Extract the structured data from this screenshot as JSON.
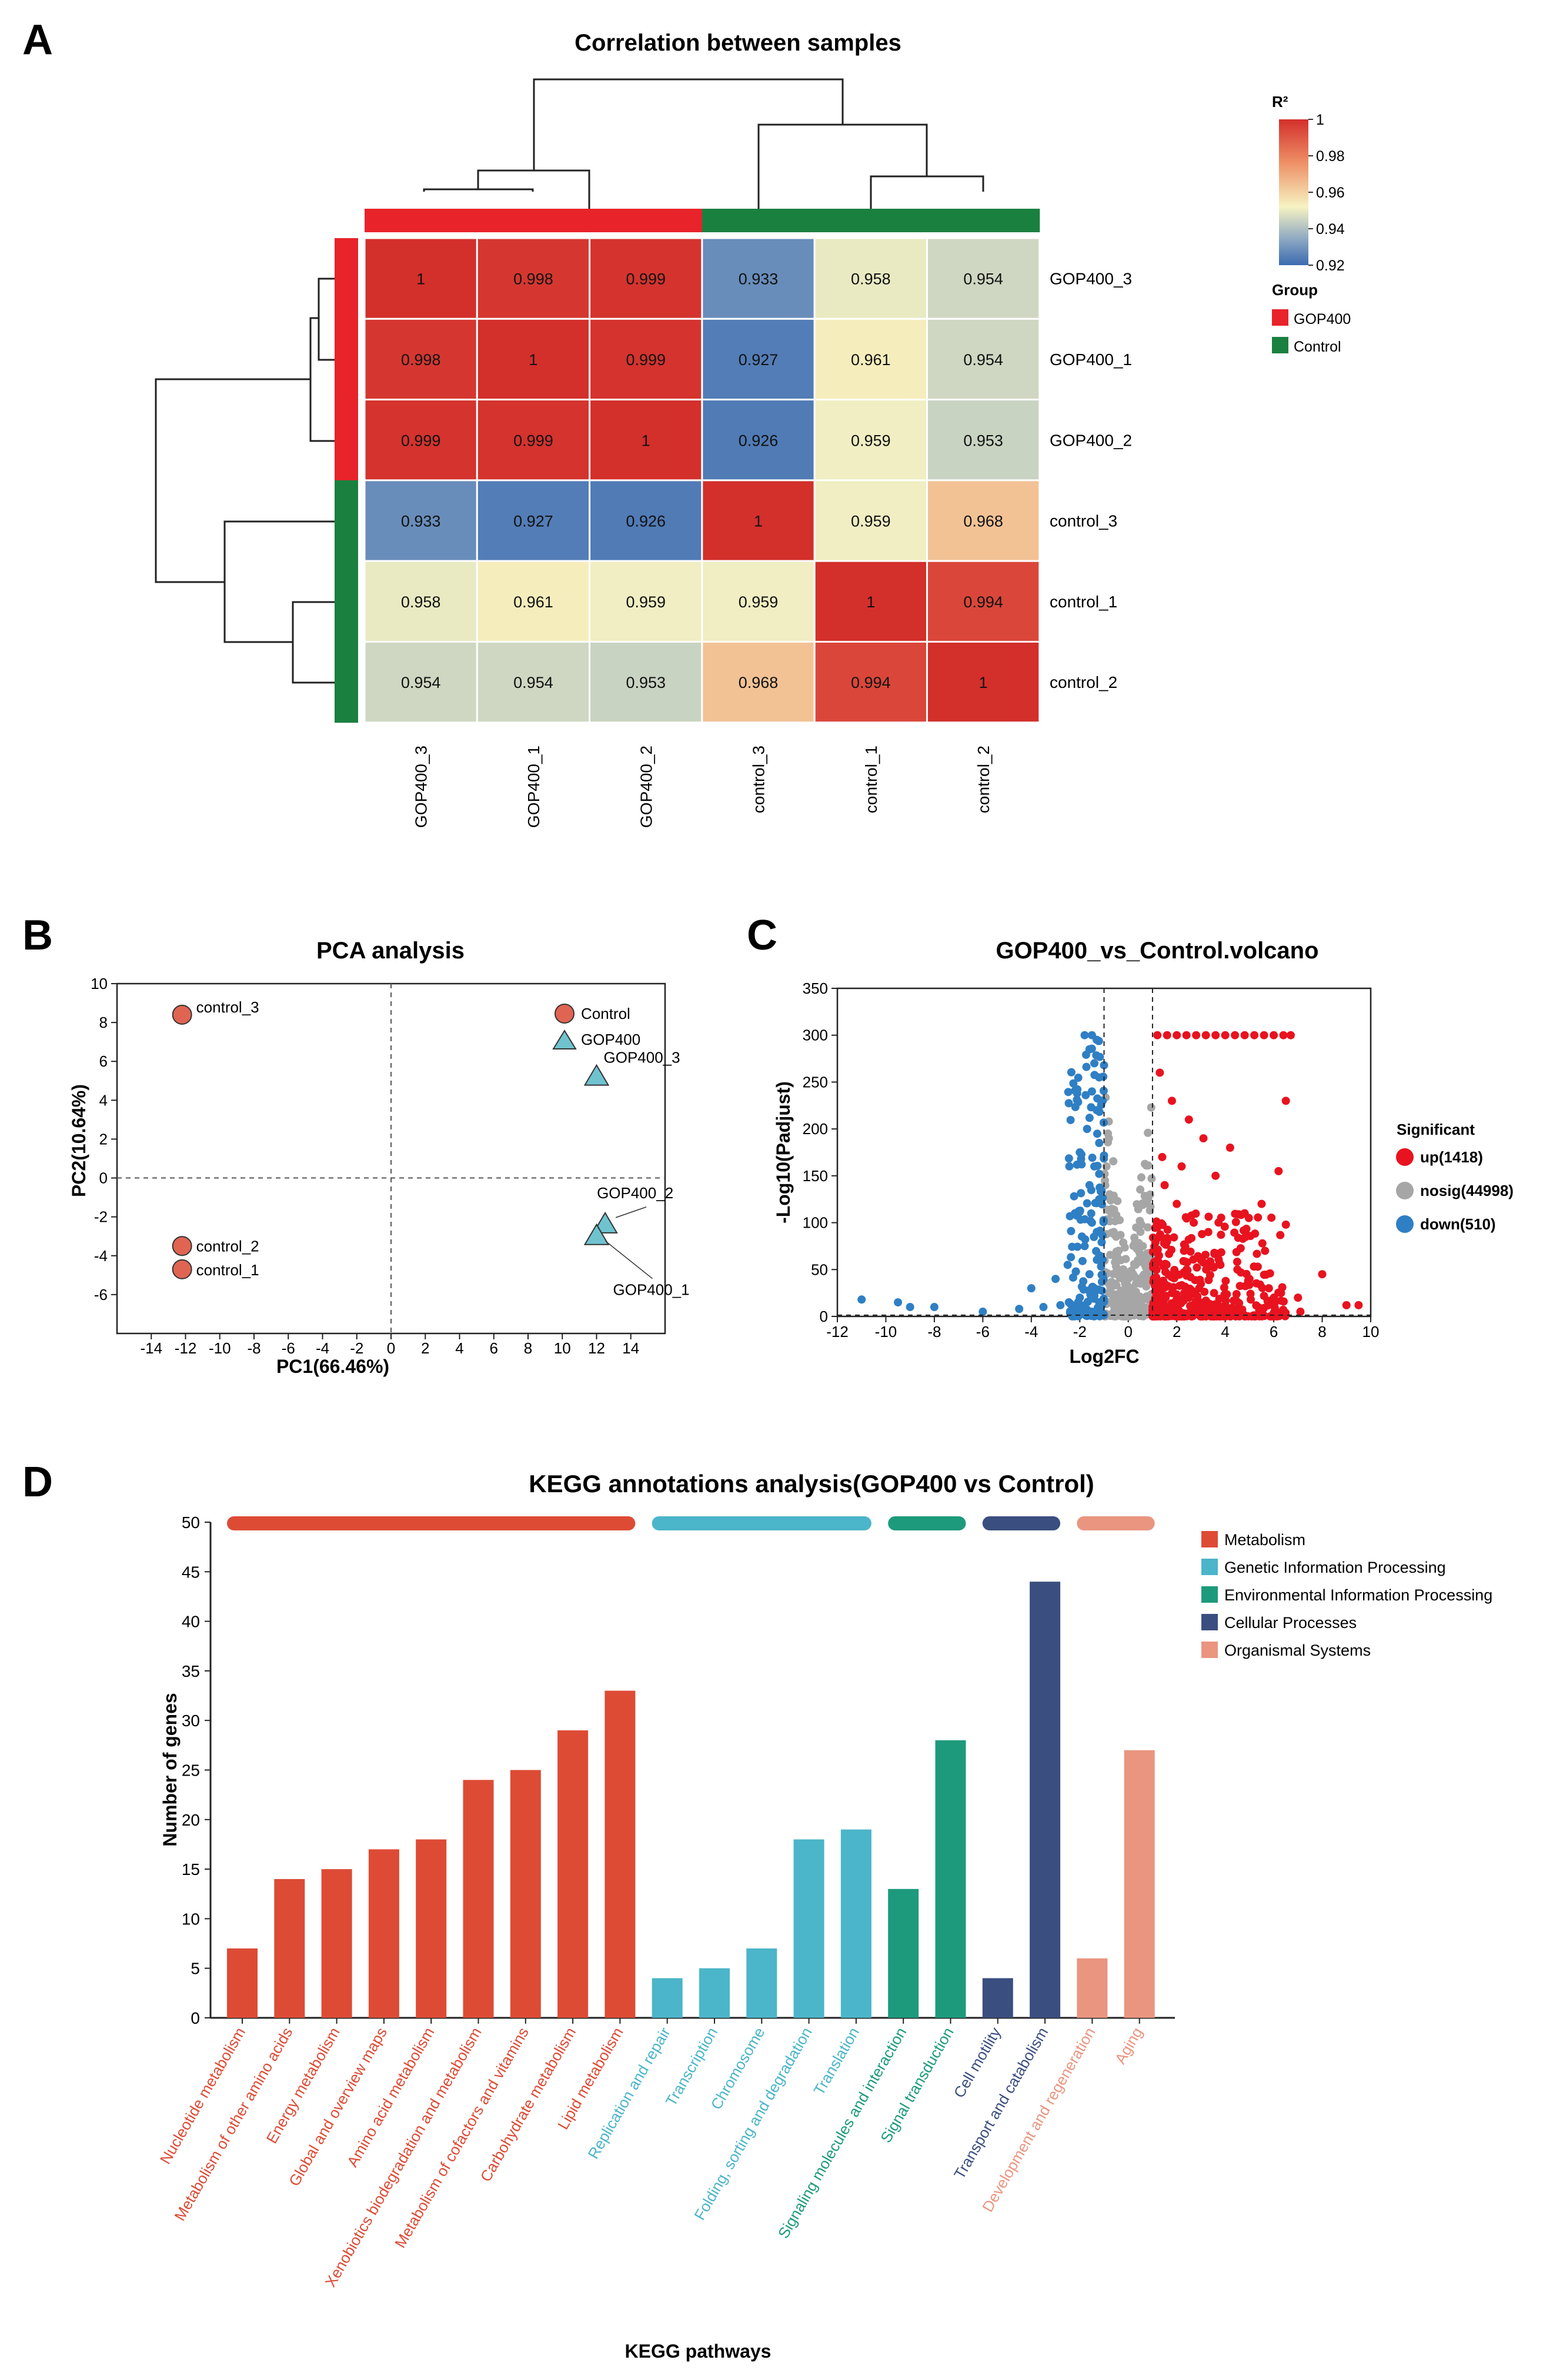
{
  "panels": {
    "a": "A",
    "b": "B",
    "c": "C",
    "d": "D"
  },
  "colors": {
    "gop400": "#e8232a",
    "control": "#1a8040",
    "pca_control": "#e06452",
    "pca_gop400": "#6fc3cf",
    "volcano_up": "#e8131f",
    "volcano_nosig": "#a6a6a6",
    "volcano_down": "#2f7fc4",
    "metabolism": "#dd4b35",
    "genetic": "#4bb5c9",
    "environmental": "#1d9a7c",
    "cellular": "#3a4e7f",
    "organismal": "#ea9580"
  },
  "chart_data": [
    {
      "type": "heatmap",
      "title": "Correlation between samples",
      "samples": [
        "GOP400_3",
        "GOP400_1",
        "GOP400_2",
        "control_3",
        "control_1",
        "control_2"
      ],
      "groups": [
        "GOP400",
        "GOP400",
        "GOP400",
        "Control",
        "Control",
        "Control"
      ],
      "matrix": [
        [
          1,
          0.998,
          0.999,
          0.933,
          0.958,
          0.954
        ],
        [
          0.998,
          1,
          0.999,
          0.927,
          0.961,
          0.954
        ],
        [
          0.999,
          0.999,
          1,
          0.926,
          0.959,
          0.953
        ],
        [
          0.933,
          0.927,
          0.926,
          1,
          0.959,
          0.968
        ],
        [
          0.958,
          0.961,
          0.959,
          0.959,
          1,
          0.994
        ],
        [
          0.954,
          0.954,
          0.953,
          0.968,
          0.994,
          1
        ]
      ],
      "display": [
        [
          "1",
          "0.998",
          "0.999",
          "0.933",
          "0.958",
          "0.954"
        ],
        [
          "0.998",
          "1",
          "0.999",
          "0.927",
          "0.961",
          "0.954"
        ],
        [
          "0.999",
          "0.999",
          "1",
          "0.926",
          "0.959",
          "0.953"
        ],
        [
          "0.933",
          "0.927",
          "0.926",
          "1",
          "0.959",
          "0.968"
        ],
        [
          "0.958",
          "0.961",
          "0.959",
          "0.959",
          "1",
          "0.994"
        ],
        [
          "0.954",
          "0.954",
          "0.953",
          "0.968",
          "0.994",
          "1"
        ]
      ],
      "color_scale": {
        "label": "R²",
        "range": [
          0.92,
          1
        ],
        "ticks": [
          "1",
          "0.98",
          "0.96",
          "0.94",
          "0.92"
        ],
        "tick_values": [
          1,
          0.98,
          0.96,
          0.94,
          0.92
        ]
      },
      "legend": {
        "title": "Group",
        "items": [
          {
            "label": "GOP400"
          },
          {
            "label": "Control"
          }
        ]
      }
    },
    {
      "type": "scatter",
      "title": "PCA analysis",
      "xlabel": "PC1(66.46%)",
      "ylabel": "PC2(10.64%)",
      "xlim": [
        -16,
        16
      ],
      "ylim": [
        -8,
        10
      ],
      "xticks": [
        -14,
        -12,
        -10,
        -8,
        -6,
        -4,
        -2,
        0,
        2,
        4,
        6,
        8,
        10,
        12,
        14
      ],
      "xtick_labels": [
        "-14",
        "-12",
        "-10",
        "-8",
        "-6",
        "-4",
        "-2",
        "0",
        "2",
        "4",
        "6",
        "8",
        "10",
        "12",
        "14"
      ],
      "yticks": [
        -6,
        -4,
        -2,
        0,
        2,
        4,
        6,
        8,
        10
      ],
      "ytick_labels": [
        "-6",
        "-4",
        "-2",
        "0",
        "2",
        "4",
        "6",
        "8",
        "10"
      ],
      "legend": [
        "Control",
        "GOP400"
      ],
      "points": [
        {
          "label": "control_3",
          "group": "Control",
          "x": -12.2,
          "y": 8.4
        },
        {
          "label": "control_2",
          "group": "Control",
          "x": -12.2,
          "y": -3.5
        },
        {
          "label": "control_1",
          "group": "Control",
          "x": -12.2,
          "y": -4.7
        },
        {
          "label": "GOP400_3",
          "group": "GOP400",
          "x": 12.0,
          "y": 5.2
        },
        {
          "label": "GOP400_2",
          "group": "GOP400",
          "x": 12.5,
          "y": -2.4
        },
        {
          "label": "GOP400_1",
          "group": "GOP400",
          "x": 12.0,
          "y": -3.0
        }
      ]
    },
    {
      "type": "scatter",
      "title": "GOP400_vs_Control.volcano",
      "xlabel": "Log2FC",
      "ylabel": "-Log10(Padjust)",
      "xlim": [
        -12,
        10
      ],
      "ylim": [
        0,
        350
      ],
      "xticks": [
        -12,
        -10,
        -8,
        -6,
        -4,
        -2,
        0,
        2,
        4,
        6,
        8,
        10
      ],
      "xtick_labels": [
        "-12",
        "-10",
        "-8",
        "-6",
        "-4",
        "-2",
        "0",
        "2",
        "4",
        "6",
        "8",
        "10"
      ],
      "yticks": [
        0,
        50,
        100,
        150,
        200,
        250,
        300,
        350
      ],
      "ytick_labels": [
        "0",
        "50",
        "100",
        "150",
        "200",
        "250",
        "300",
        "350"
      ],
      "thresholds_x": [
        -1,
        1
      ],
      "legend_title": "Significant",
      "series": [
        {
          "name": "up(1418)",
          "key": "up",
          "count": 1418,
          "sample_points": [
            [
              1.2,
              300
            ],
            [
              1.6,
              300
            ],
            [
              2.0,
              300
            ],
            [
              2.4,
              300
            ],
            [
              2.8,
              300
            ],
            [
              3.2,
              300
            ],
            [
              3.6,
              300
            ],
            [
              4.0,
              300
            ],
            [
              4.4,
              300
            ],
            [
              4.8,
              300
            ],
            [
              5.2,
              300
            ],
            [
              5.6,
              300
            ],
            [
              6.0,
              300
            ],
            [
              6.4,
              300
            ],
            [
              6.7,
              300
            ],
            [
              1.3,
              260
            ],
            [
              1.8,
              230
            ],
            [
              2.5,
              210
            ],
            [
              3.1,
              190
            ],
            [
              4.2,
              180
            ],
            [
              1.4,
              170
            ],
            [
              2.2,
              160
            ],
            [
              3.6,
              150
            ],
            [
              6.5,
              230
            ],
            [
              6.2,
              155
            ],
            [
              5.5,
              120
            ],
            [
              4.8,
              110
            ],
            [
              1.5,
              140
            ],
            [
              2.0,
              120
            ],
            [
              2.7,
              100
            ],
            [
              3.3,
              90
            ],
            [
              1.2,
              95
            ],
            [
              1.6,
              80
            ],
            [
              2.3,
              70
            ],
            [
              3.0,
              60
            ],
            [
              3.8,
              55
            ],
            [
              4.5,
              50
            ],
            [
              5.0,
              40
            ],
            [
              5.8,
              30
            ],
            [
              6.3,
              25
            ],
            [
              7.0,
              20
            ],
            [
              8.0,
              45
            ],
            [
              9.0,
              12
            ],
            [
              9.5,
              12
            ],
            [
              1.1,
              40
            ],
            [
              1.4,
              30
            ],
            [
              1.8,
              25
            ],
            [
              2.5,
              20
            ],
            [
              3.2,
              15
            ],
            [
              4.0,
              12
            ],
            [
              4.6,
              8
            ],
            [
              5.4,
              6
            ],
            [
              6.1,
              5
            ],
            [
              7.1,
              5
            ],
            [
              1.2,
              10
            ],
            [
              1.7,
              6
            ],
            [
              2.1,
              4
            ]
          ]
        },
        {
          "name": "nosig(44998)",
          "key": "nosig",
          "count": 44998,
          "sample_points": [
            [
              -0.9,
              160
            ],
            [
              -0.8,
              190
            ],
            [
              -0.95,
              140
            ],
            [
              -0.6,
              90
            ],
            [
              -0.4,
              70
            ],
            [
              -0.2,
              50
            ],
            [
              0,
              40
            ],
            [
              0.2,
              45
            ],
            [
              0.4,
              60
            ],
            [
              0.6,
              75
            ],
            [
              0.8,
              95
            ],
            [
              0.9,
              130
            ],
            [
              -0.7,
              110
            ],
            [
              -0.5,
              85
            ],
            [
              -0.3,
              60
            ],
            [
              0.3,
              55
            ],
            [
              0.5,
              35
            ],
            [
              0.7,
              20
            ],
            [
              -0.8,
              25
            ],
            [
              -0.4,
              18
            ],
            [
              0.1,
              10
            ],
            [
              -0.1,
              8
            ],
            [
              0.4,
              6
            ],
            [
              -0.6,
              5
            ]
          ]
        },
        {
          "name": "down(510)",
          "key": "down",
          "count": 510,
          "sample_points": [
            [
              -1.5,
              300
            ],
            [
              -1.8,
              300
            ],
            [
              -1.3,
              295
            ],
            [
              -1.6,
              285
            ],
            [
              -1.4,
              270
            ],
            [
              -1.2,
              255
            ],
            [
              -1.5,
              240
            ],
            [
              -1.3,
              220
            ],
            [
              -1.7,
              200
            ],
            [
              -1.2,
              185
            ],
            [
              -2.0,
              175
            ],
            [
              -1.4,
              160
            ],
            [
              -1.6,
              140
            ],
            [
              -1.2,
              125
            ],
            [
              -2.2,
              110
            ],
            [
              -1.5,
              100
            ],
            [
              -1.3,
              90
            ],
            [
              -1.8,
              75
            ],
            [
              -1.2,
              65
            ],
            [
              -2.5,
              55
            ],
            [
              -1.6,
              45
            ],
            [
              -3.0,
              40
            ],
            [
              -4.0,
              30
            ],
            [
              -1.4,
              30
            ],
            [
              -2.0,
              20
            ],
            [
              -1.2,
              15
            ],
            [
              -11.0,
              18
            ],
            [
              -9.5,
              15
            ],
            [
              -9.0,
              10
            ],
            [
              -8.0,
              10
            ],
            [
              -6.0,
              5
            ],
            [
              -4.5,
              8
            ],
            [
              -3.5,
              10
            ],
            [
              -2.8,
              12
            ],
            [
              -2.0,
              8
            ],
            [
              -1.5,
              5
            ],
            [
              -1.1,
              3
            ]
          ]
        }
      ]
    },
    {
      "type": "bar",
      "title": "KEGG annotations analysis(GOP400 vs Control)",
      "xlabel": "KEGG pathways",
      "ylabel": "Number of genes",
      "ylim": [
        0,
        50
      ],
      "yticks": [
        0,
        5,
        10,
        15,
        20,
        25,
        30,
        35,
        40,
        45,
        50
      ],
      "ytick_labels": [
        "0",
        "5",
        "10",
        "15",
        "20",
        "25",
        "30",
        "35",
        "40",
        "45",
        "50"
      ],
      "categories": [
        "Nucleotide metabolism",
        "Metabolism of other amino acids",
        "Energy metabolism",
        "Global and overview maps",
        "Amino acid metabolism",
        "Xenobiotics biodegradation and metabolism",
        "Metabolism of cofactors and vitamins",
        "Carbohydrate metabolism",
        "Lipid metabolism",
        "Replication and repair",
        "Transcription",
        "Chromosome",
        "Folding, sorting and degradation",
        "Translation",
        "Signaling molecules and interaction",
        "Signal transduction",
        "Cell motility",
        "Transport and catabolism",
        "Development and regeneration",
        "Aging"
      ],
      "values": [
        7,
        14,
        15,
        17,
        18,
        24,
        25,
        29,
        33,
        4,
        5,
        7,
        18,
        19,
        13,
        28,
        4,
        44,
        6,
        27
      ],
      "class_of_bar": [
        "metabolism",
        "metabolism",
        "metabolism",
        "metabolism",
        "metabolism",
        "metabolism",
        "metabolism",
        "metabolism",
        "metabolism",
        "genetic",
        "genetic",
        "genetic",
        "genetic",
        "genetic",
        "environmental",
        "environmental",
        "cellular",
        "cellular",
        "organismal",
        "organismal"
      ],
      "legend": [
        {
          "key": "metabolism",
          "label": "Metabolism"
        },
        {
          "key": "genetic",
          "label": "Genetic Information Processing"
        },
        {
          "key": "environmental",
          "label": "Environmental Information Processing"
        },
        {
          "key": "cellular",
          "label": "Cellular Processes"
        },
        {
          "key": "organismal",
          "label": "Organismal Systems"
        }
      ]
    }
  ]
}
